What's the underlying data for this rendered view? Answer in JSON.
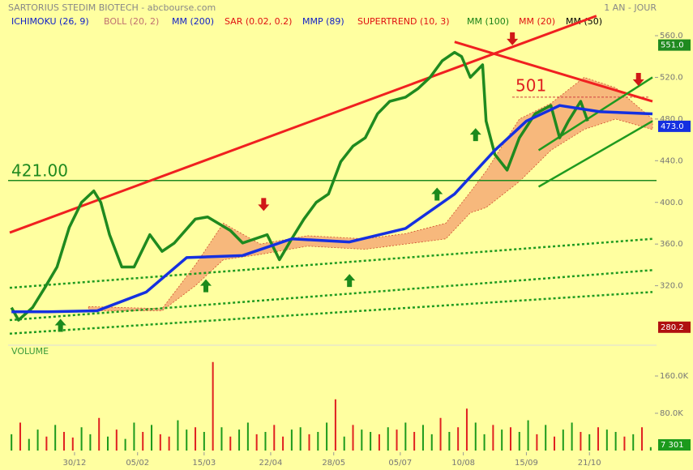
{
  "chart_data": {
    "type": "line",
    "title": "SARTORIUS STEDIM BIOTECH - abcbourse.com",
    "period": "1 AN - JOUR",
    "indicators": [
      {
        "name": "ICHIMOKU (26, 9)",
        "color": "#1020c8"
      },
      {
        "name": "BOLL (20, 2)",
        "color": "#c07070"
      },
      {
        "name": "MM (200)",
        "color": "#1020c8"
      },
      {
        "name": "SAR (0.02, 0.2)",
        "color": "#e01010"
      },
      {
        "name": "MMP (89)",
        "color": "#1020c8"
      },
      {
        "name": "SUPERTREND (10, 3)",
        "color": "#e01010"
      },
      {
        "name": "MM (100)",
        "color": "#168016"
      },
      {
        "name": "MM (20)",
        "color": "#e01010"
      },
      {
        "name": "MM (50)",
        "color": "#000000"
      }
    ],
    "xlim": [
      0,
      367
    ],
    "xticks": [
      {
        "value": 37,
        "label": "30/12"
      },
      {
        "value": 73,
        "label": "05/02"
      },
      {
        "value": 111,
        "label": "15/03"
      },
      {
        "value": 149,
        "label": "22/04"
      },
      {
        "value": 185,
        "label": "28/05"
      },
      {
        "value": 223,
        "label": "05/07"
      },
      {
        "value": 259,
        "label": "10/08"
      },
      {
        "value": 295,
        "label": "15/09"
      },
      {
        "value": 331,
        "label": "21/10"
      }
    ],
    "ylim": [
      270,
      572
    ],
    "yticks": [
      {
        "value": 320,
        "label": "320.0"
      },
      {
        "value": 360,
        "label": "360.0"
      },
      {
        "value": 400,
        "label": "400.0"
      },
      {
        "value": 440,
        "label": "440.0"
      },
      {
        "value": 480,
        "label": "480.0"
      },
      {
        "value": 520,
        "label": "520.0"
      },
      {
        "value": 560,
        "label": "560.0"
      }
    ],
    "cloud": {
      "color": "#f4a070",
      "x": [
        45,
        87,
        106,
        122,
        143,
        170,
        203,
        226,
        249,
        263,
        272,
        291,
        309,
        328,
        346,
        367
      ],
      "upper": [
        300,
        298,
        340,
        380,
        360,
        368,
        365,
        370,
        380,
        410,
        430,
        480,
        495,
        520,
        510,
        480
      ],
      "lower": [
        296,
        296,
        320,
        345,
        350,
        358,
        355,
        360,
        365,
        390,
        395,
        420,
        450,
        470,
        480,
        470
      ]
    },
    "series": [
      {
        "color": "#1f8a1f",
        "width": 3.5,
        "x": [
          1,
          5,
          13,
          20,
          27,
          34,
          41,
          48,
          52,
          57,
          64,
          71,
          80,
          87,
          94,
          106,
          113,
          119,
          126,
          133,
          140,
          147,
          154,
          161,
          168,
          175,
          182,
          189,
          196,
          203,
          210,
          217,
          226,
          233,
          240,
          247,
          254,
          258,
          263,
          270,
          272,
          277,
          284,
          291,
          300,
          309,
          314,
          319,
          326,
          330
        ],
        "values": [
          299,
          287,
          299,
          318,
          338,
          376,
          400,
          411,
          400,
          369,
          338,
          338,
          369,
          353,
          361,
          384,
          386,
          380,
          373,
          361,
          365,
          369,
          345,
          365,
          384,
          400,
          408,
          439,
          454,
          462,
          485,
          497,
          501,
          509,
          520,
          536,
          544,
          540,
          520,
          532,
          478,
          446,
          431,
          462,
          485,
          493,
          462,
          478,
          497,
          478
        ]
      },
      {
        "color": "#1530e0",
        "width": 3.5,
        "x": [
          1,
          22,
          50,
          78,
          101,
          133,
          161,
          194,
          226,
          254,
          277,
          295,
          314,
          337,
          367
        ],
        "values": [
          295,
          295,
          296,
          314,
          347,
          349,
          365,
          362,
          375,
          408,
          450,
          478,
          493,
          487,
          485
        ]
      }
    ],
    "trendlines": [
      {
        "color": "#f02020",
        "width": 3,
        "dashed": false,
        "x": [
          0,
          335
        ],
        "values": [
          371,
          579
        ]
      },
      {
        "color": "#f02020",
        "width": 3,
        "dashed": false,
        "x": [
          254,
          367
        ],
        "values": [
          554,
          497
        ]
      },
      {
        "color": "#1f9a1f",
        "width": 2.5,
        "dashed": false,
        "x": [
          302,
          367
        ],
        "values": [
          415,
          478
        ]
      },
      {
        "color": "#1f9a1f",
        "width": 2.5,
        "dashed": false,
        "x": [
          302,
          367
        ],
        "values": [
          450,
          520
        ]
      },
      {
        "color": "#1f9a1f",
        "width": 2.5,
        "dashed": true,
        "x": [
          0,
          367
        ],
        "values": [
          318,
          365
        ]
      },
      {
        "color": "#1f9a1f",
        "width": 2.5,
        "dashed": true,
        "x": [
          0,
          367
        ],
        "values": [
          287,
          335
        ]
      },
      {
        "color": "#1f9a1f",
        "width": 2.5,
        "dashed": true,
        "x": [
          0,
          367
        ],
        "values": [
          274,
          314
        ]
      }
    ],
    "levels": [
      {
        "value": 421,
        "label": "421.00"
      },
      501
    ],
    "price_labels": [
      {
        "value": 551,
        "label": "551.0",
        "color": "#1f8a1f"
      },
      {
        "value": 473,
        "label": "473.0",
        "color": "#1530e0"
      },
      {
        "value": 280.2,
        "label": "280.2",
        "color": "#b01010"
      }
    ],
    "signals": [
      {
        "x": 29,
        "value": 282,
        "direction": "up"
      },
      {
        "x": 112,
        "value": 320,
        "direction": "up"
      },
      {
        "x": 145,
        "value": 398,
        "direction": "down"
      },
      {
        "x": 194,
        "value": 325,
        "direction": "up"
      },
      {
        "x": 244,
        "value": 408,
        "direction": "up"
      },
      {
        "x": 266,
        "value": 465,
        "direction": "up"
      },
      {
        "x": 287,
        "value": 557,
        "direction": "down"
      },
      {
        "x": 359,
        "value": 518,
        "direction": "down"
      }
    ],
    "volume": {
      "label": "VOLUME",
      "ylim": [
        0,
        200000
      ],
      "yticks": [
        {
          "value": 80000,
          "label": "80.0K"
        },
        {
          "value": 160000,
          "label": "160.0K"
        }
      ],
      "last_label": "7 301",
      "x": [
        1,
        6,
        11,
        16,
        21,
        26,
        31,
        36,
        41,
        46,
        51,
        56,
        61,
        66,
        71,
        76,
        81,
        86,
        91,
        96,
        101,
        106,
        111,
        116,
        121,
        126,
        131,
        136,
        141,
        146,
        151,
        156,
        161,
        166,
        171,
        176,
        181,
        186,
        191,
        196,
        201,
        206,
        211,
        216,
        221,
        226,
        231,
        236,
        241,
        246,
        251,
        256,
        261,
        266,
        271,
        276,
        281,
        286,
        291,
        296,
        301,
        306,
        311,
        316,
        321,
        326,
        331,
        336,
        341,
        346,
        351,
        356,
        361,
        366
      ],
      "values": [
        35000,
        60000,
        25000,
        45000,
        30000,
        55000,
        40000,
        28000,
        50000,
        35000,
        70000,
        30000,
        45000,
        25000,
        60000,
        40000,
        55000,
        35000,
        30000,
        65000,
        45000,
        50000,
        40000,
        190000,
        50000,
        30000,
        45000,
        60000,
        35000,
        40000,
        55000,
        30000,
        45000,
        50000,
        35000,
        40000,
        60000,
        110000,
        30000,
        55000,
        45000,
        40000,
        35000,
        50000,
        45000,
        60000,
        40000,
        55000,
        35000,
        70000,
        40000,
        50000,
        90000,
        60000,
        35000,
        55000,
        45000,
        50000,
        40000,
        65000,
        35000,
        55000,
        30000,
        45000,
        60000,
        40000,
        35000,
        50000,
        45000,
        40000,
        30000,
        35000,
        50000,
        7301
      ],
      "colors": [
        "#1c9a1c",
        "#e02020",
        "#1c9a1c",
        "#1c9a1c",
        "#e02020",
        "#1c9a1c",
        "#e02020",
        "#e02020",
        "#1c9a1c",
        "#1c9a1c",
        "#e02020",
        "#1c9a1c",
        "#e02020",
        "#1c9a1c",
        "#1c9a1c",
        "#e02020",
        "#1c9a1c",
        "#e02020",
        "#e02020",
        "#1c9a1c",
        "#1c9a1c",
        "#e02020",
        "#1c9a1c",
        "#e02020",
        "#1c9a1c",
        "#e02020",
        "#1c9a1c",
        "#1c9a1c",
        "#e02020",
        "#1c9a1c",
        "#e02020",
        "#e02020",
        "#1c9a1c",
        "#1c9a1c",
        "#e02020",
        "#1c9a1c",
        "#1c9a1c",
        "#e02020",
        "#1c9a1c",
        "#e02020",
        "#1c9a1c",
        "#1c9a1c",
        "#e02020",
        "#1c9a1c",
        "#e02020",
        "#1c9a1c",
        "#e02020",
        "#1c9a1c",
        "#1c9a1c",
        "#e02020",
        "#1c9a1c",
        "#e02020",
        "#e02020",
        "#1c9a1c",
        "#1c9a1c",
        "#e02020",
        "#1c9a1c",
        "#e02020",
        "#1c9a1c",
        "#1c9a1c",
        "#e02020",
        "#1c9a1c",
        "#e02020",
        "#1c9a1c",
        "#1c9a1c",
        "#e02020",
        "#1c9a1c",
        "#e02020",
        "#1c9a1c",
        "#1c9a1c",
        "#e02020",
        "#1c9a1c",
        "#e02020",
        "#1c9a1c"
      ]
    }
  }
}
